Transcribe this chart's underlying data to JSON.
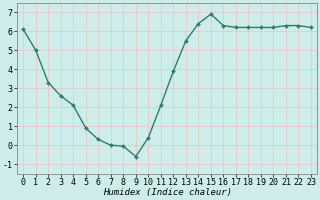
{
  "x": [
    0,
    1,
    2,
    3,
    4,
    5,
    6,
    7,
    8,
    9,
    10,
    11,
    12,
    13,
    14,
    15,
    16,
    17,
    18,
    19,
    20,
    21,
    22,
    23
  ],
  "y": [
    6.1,
    5.0,
    3.3,
    2.6,
    2.1,
    0.9,
    0.3,
    0.0,
    -0.05,
    -0.6,
    0.4,
    2.1,
    3.9,
    5.5,
    6.4,
    6.9,
    6.3,
    6.2,
    6.2,
    6.2,
    6.2,
    6.3,
    6.3,
    6.2
  ],
  "line_color": "#2e7d6e",
  "marker": "D",
  "marker_size": 2.0,
  "bg_color": "#cdecea",
  "grid_color": "#e8c8c8",
  "xlabel": "Humidex (Indice chaleur)",
  "xlim": [
    -0.5,
    23.5
  ],
  "ylim": [
    -1.5,
    7.5
  ],
  "yticks": [
    -1,
    0,
    1,
    2,
    3,
    4,
    5,
    6,
    7
  ],
  "xticks": [
    0,
    1,
    2,
    3,
    4,
    5,
    6,
    7,
    8,
    9,
    10,
    11,
    12,
    13,
    14,
    15,
    16,
    17,
    18,
    19,
    20,
    21,
    22,
    23
  ],
  "xlabel_fontsize": 6.5,
  "tick_fontsize": 6.0,
  "line_width": 1.0,
  "spine_color": "#888888"
}
